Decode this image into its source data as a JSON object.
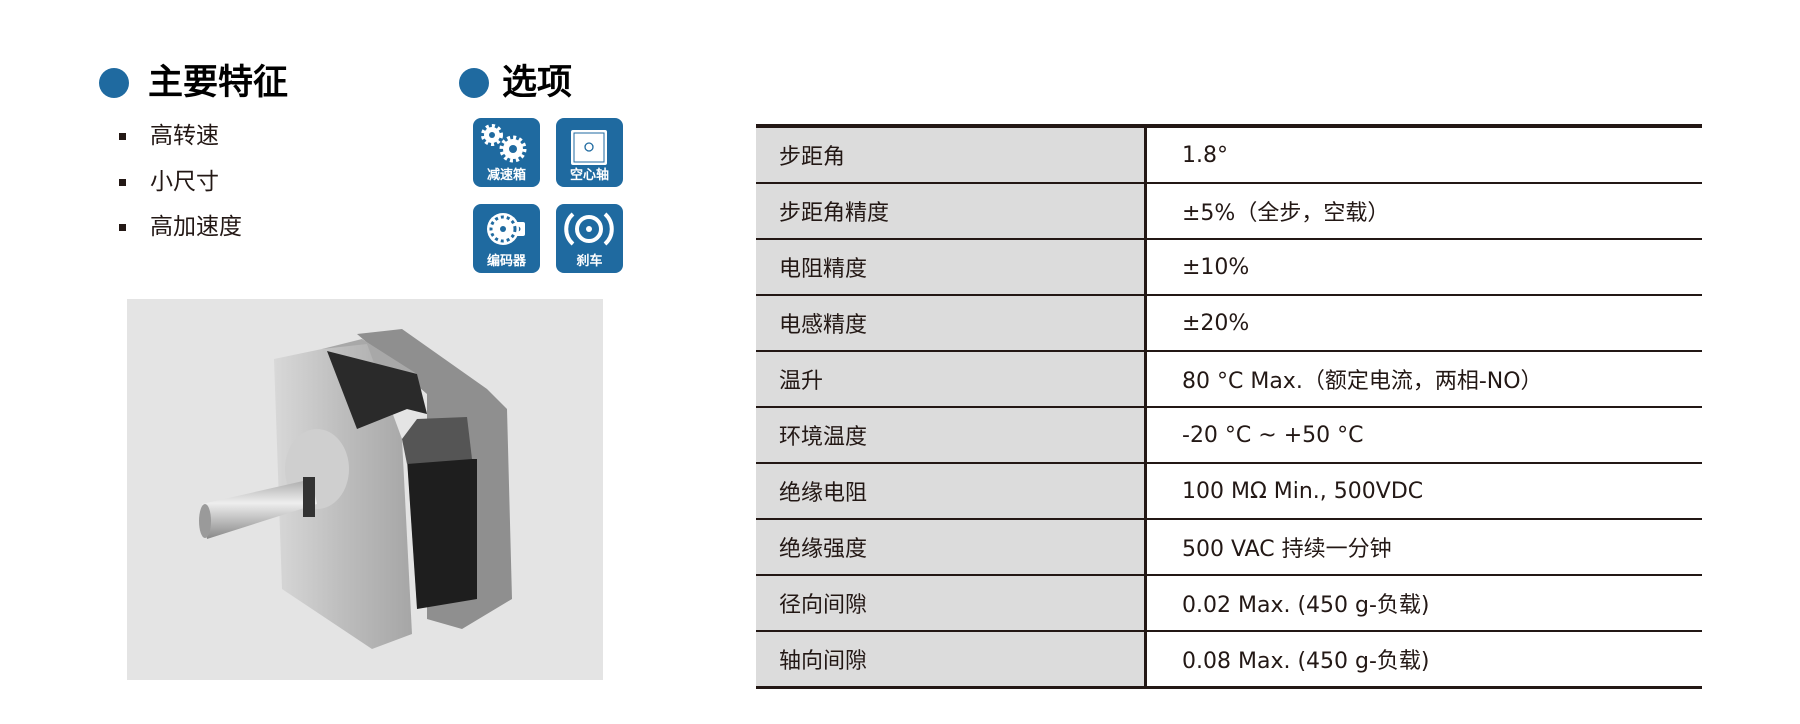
{
  "colors": {
    "accent": "#1f6aa0",
    "label_bg": "#dcdcdc",
    "photo_bg": "#e4e4e4"
  },
  "features": {
    "title": "主要特征",
    "items": [
      "高转速",
      "小尺寸",
      "高加速度"
    ]
  },
  "options": {
    "title": "选项",
    "items": [
      {
        "label": "减速箱",
        "icon": "gearbox-icon"
      },
      {
        "label": "空心轴",
        "icon": "hollow-shaft-icon"
      },
      {
        "label": "编码器",
        "icon": "encoder-icon"
      },
      {
        "label": "刹车",
        "icon": "brake-icon"
      }
    ]
  },
  "specs": [
    {
      "key": "步距角",
      "value": "1.8°"
    },
    {
      "key": "步距角精度",
      "value": "±5%（全步，空载）"
    },
    {
      "key": "电阻精度",
      "value": "±10%"
    },
    {
      "key": "电感精度",
      "value": "±20%"
    },
    {
      "key": "温升",
      "value": "80 °C Max.（额定电流，两相-NO）"
    },
    {
      "key": "环境温度",
      "value": "-20 °C ~ +50 °C"
    },
    {
      "key": "绝缘电阻",
      "value": "100 MΩ Min., 500VDC"
    },
    {
      "key": "绝缘强度",
      "value": "500 VAC 持续一分钟"
    },
    {
      "key": "径向间隙",
      "value": "0.02 Max. (450 g-负载)"
    },
    {
      "key": "轴向间隙",
      "value": "0.08 Max. (450 g-负载)"
    }
  ]
}
